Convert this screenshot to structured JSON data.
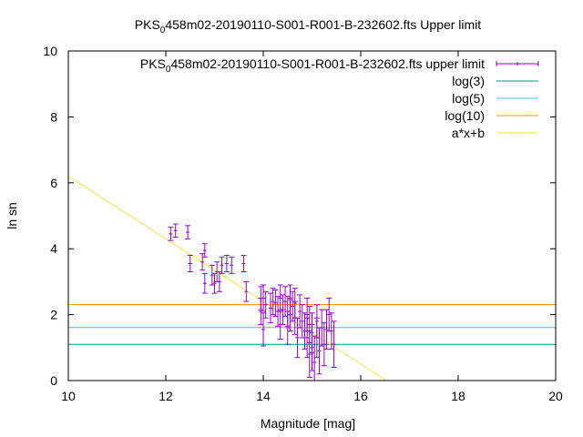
{
  "chart_data": {
    "type": "scatter",
    "title": "PKS₀458m02-20190110-S001-R001-B-232602.fts Upper limit",
    "title_parts": {
      "pre": "PKS",
      "sub": "0",
      "post": "458m02-20190110-S001-R001-B-232602.fts Upper limit"
    },
    "xlabel": "Magnitude [mag]",
    "ylabel": "ln sn",
    "xlim": [
      10,
      20
    ],
    "ylim": [
      0,
      10
    ],
    "x_ticks": [
      "10",
      "12",
      "14",
      "16",
      "18",
      "20"
    ],
    "y_ticks": [
      "0",
      "2",
      "4",
      "6",
      "8",
      "10"
    ],
    "legend_position": "top-right",
    "legend": [
      {
        "pre": "PKS",
        "sub": "0",
        "post": "458m02-20190110-S001-R001-B-232602.fts upper limit",
        "color": "#9400d3",
        "kind": "errorbar"
      },
      {
        "pre": "log(3)",
        "sub": "",
        "post": "",
        "color": "#009e73",
        "kind": "line"
      },
      {
        "pre": "log(5)",
        "sub": "",
        "post": "",
        "color": "#56b4e9",
        "kind": "line"
      },
      {
        "pre": "log(10)",
        "sub": "",
        "post": "",
        "color": "#e69f00",
        "kind": "line"
      },
      {
        "pre": "a*x+b",
        "sub": "",
        "post": "",
        "color": "#f0e442",
        "kind": "line"
      }
    ],
    "hlines": [
      {
        "y": 1.0986,
        "color": "#009e73"
      },
      {
        "y": 1.6094,
        "color": "#56b4e9"
      },
      {
        "y": 2.3026,
        "color": "#e69f00"
      }
    ],
    "fit_line": {
      "slope": -0.95,
      "intercept": 15.7,
      "color": "#f0e442"
    },
    "series": [
      {
        "color": "#9400d3",
        "points": [
          [
            12.1,
            4.45,
            0.2
          ],
          [
            12.2,
            4.55,
            0.2
          ],
          [
            12.45,
            4.5,
            0.2
          ],
          [
            12.5,
            3.55,
            0.25
          ],
          [
            12.75,
            3.6,
            0.25
          ],
          [
            12.8,
            3.95,
            0.2
          ],
          [
            12.8,
            2.95,
            0.3
          ],
          [
            12.95,
            3.2,
            0.3
          ],
          [
            13.0,
            2.95,
            0.3
          ],
          [
            13.05,
            3.3,
            0.3
          ],
          [
            13.1,
            3.0,
            0.3
          ],
          [
            13.15,
            3.5,
            0.25
          ],
          [
            13.25,
            3.55,
            0.25
          ],
          [
            13.35,
            3.5,
            0.25
          ],
          [
            13.6,
            3.55,
            0.25
          ],
          [
            13.65,
            2.7,
            0.3
          ],
          [
            13.95,
            2.5,
            0.35
          ],
          [
            13.95,
            2.1,
            0.4
          ],
          [
            14.0,
            1.55,
            0.5
          ],
          [
            14.0,
            2.5,
            0.4
          ],
          [
            14.05,
            2.3,
            0.4
          ],
          [
            14.2,
            2.4,
            0.4
          ],
          [
            14.25,
            2.35,
            0.4
          ],
          [
            14.3,
            2.1,
            0.45
          ],
          [
            14.35,
            2.5,
            0.4
          ],
          [
            14.35,
            1.7,
            0.45
          ],
          [
            14.4,
            2.15,
            0.45
          ],
          [
            14.45,
            2.4,
            0.45
          ],
          [
            14.5,
            2.1,
            0.45
          ],
          [
            14.5,
            1.6,
            0.5
          ],
          [
            14.55,
            2.0,
            0.5
          ],
          [
            14.55,
            2.45,
            0.45
          ],
          [
            14.6,
            2.25,
            0.45
          ],
          [
            14.65,
            1.9,
            0.5
          ],
          [
            14.65,
            2.35,
            0.45
          ],
          [
            14.7,
            1.3,
            0.6
          ],
          [
            14.75,
            2.1,
            0.5
          ],
          [
            14.8,
            1.8,
            0.5
          ],
          [
            14.85,
            1.5,
            0.55
          ],
          [
            14.9,
            1.3,
            0.6
          ],
          [
            14.95,
            0.8,
            0.7
          ],
          [
            14.95,
            1.7,
            0.55
          ],
          [
            15.0,
            1.0,
            0.7
          ],
          [
            15.0,
            1.45,
            0.6
          ],
          [
            15.05,
            0.55,
            0.8
          ],
          [
            15.1,
            1.3,
            0.6
          ],
          [
            15.1,
            1.8,
            0.5
          ],
          [
            15.15,
            0.9,
            0.7
          ],
          [
            15.2,
            1.6,
            0.55
          ],
          [
            15.25,
            1.1,
            0.65
          ],
          [
            15.3,
            1.55,
            0.6
          ],
          [
            15.35,
            2.0,
            0.5
          ],
          [
            15.4,
            1.5,
            0.55
          ],
          [
            15.45,
            1.1,
            0.7
          ],
          [
            14.9,
            2.0,
            0.5
          ],
          [
            14.15,
            2.2,
            0.45
          ]
        ]
      }
    ]
  }
}
